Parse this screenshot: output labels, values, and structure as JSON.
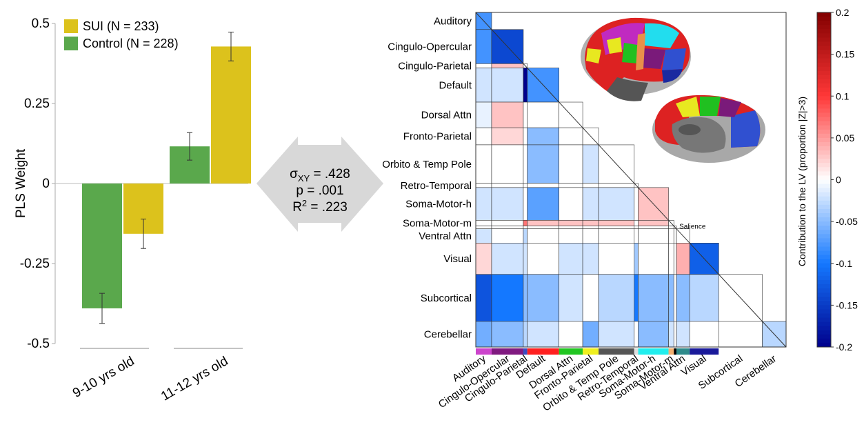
{
  "chart_data": [
    {
      "type": "bar",
      "ylabel": "PLS Weight",
      "ylim": [
        -0.5,
        0.5
      ],
      "yticks": [
        "0.5",
        "0.25",
        "0",
        "-0.25",
        "-0.5"
      ],
      "categories": [
        "9-10 yrs old",
        "11-12 yrs old"
      ],
      "legend": "top-left",
      "series": [
        {
          "name": "Control (N = 228)",
          "color": "#5aa84c",
          "values": [
            -0.39,
            0.116
          ],
          "error": [
            0.047,
            0.043
          ]
        },
        {
          "name": "SUI (N = 233)",
          "color": "#dcc21c",
          "values": [
            -0.157,
            0.428
          ],
          "error": [
            0.046,
            0.045
          ]
        }
      ],
      "stats": {
        "sigma": "σ",
        "sigma_sub": "XY",
        "sigma_value": " = .428",
        "p": "p = .001",
        "r2": "R",
        "r2_sup": "2",
        "r2_value": " = .223"
      }
    },
    {
      "type": "heatmap",
      "networks": [
        "Auditory",
        "Cingulo-Opercular",
        "Cingulo-Parietal",
        "Default",
        "Dorsal Attn",
        "Fronto-Parietal",
        "Orbito & Temp Pole",
        "Retro-Temporal",
        "Soma-Motor-h",
        "Soma-Motor-m",
        "Salience",
        "Ventral Attn",
        "Visual",
        "Subcortical",
        "Cerebellar"
      ],
      "network_colors": [
        "#cc44cc",
        "#801a80",
        "#3b4cc0",
        "#ff2020",
        "#22c622",
        "#f0f020",
        "#555555",
        "#dddddd",
        "#22eeee",
        "#f4b070",
        "#000000",
        "#2e8b8b",
        "#1a1a9a",
        "#ffffff",
        "#ffffff"
      ],
      "values": [
        [
          -0.08
        ],
        [
          -0.08,
          -0.14
        ],
        [
          0.0,
          0.03,
          0.0
        ],
        [
          -0.02,
          -0.02,
          -0.2,
          -0.08
        ],
        [
          -0.01,
          0.03,
          0.0,
          0.0,
          0.0
        ],
        [
          0.0,
          0.02,
          0.0,
          -0.05,
          0.0,
          0.0
        ],
        [
          0.0,
          0.0,
          0.0,
          -0.05,
          0.0,
          -0.02,
          0.0
        ],
        [
          0.0,
          0.0,
          0.0,
          0.0,
          0.0,
          0.0,
          0.0,
          0.0
        ],
        [
          -0.02,
          -0.02,
          0.0,
          -0.07,
          0.0,
          -0.02,
          -0.02,
          0.0,
          0.03
        ],
        [
          0.0,
          0.0,
          0.07,
          0.03,
          0.03,
          0.03,
          0.03,
          0.0,
          0.03,
          0.0
        ],
        [
          0.0,
          0.0,
          0.0,
          0.0,
          0.0,
          0.0,
          0.0,
          0.0,
          0.0,
          0.0,
          0.0
        ],
        [
          -0.02,
          0.0,
          -0.03,
          0.0,
          0.0,
          0.0,
          0.0,
          0.0,
          0.0,
          0.0,
          0.0,
          0.0
        ],
        [
          0.02,
          -0.02,
          -0.02,
          0.0,
          -0.02,
          -0.02,
          0.0,
          -0.04,
          0.0,
          0.0,
          0.0,
          0.04,
          -0.12
        ],
        [
          -0.13,
          -0.1,
          -0.05,
          -0.05,
          -0.02,
          0.0,
          -0.03,
          -0.1,
          -0.05,
          -0.05,
          0.0,
          -0.05,
          -0.03,
          0.0
        ],
        [
          -0.06,
          -0.05,
          -0.03,
          -0.02,
          0.0,
          -0.06,
          -0.02,
          0.0,
          -0.05,
          -0.02,
          0.0,
          -0.02,
          0.0,
          0.0,
          -0.03
        ]
      ],
      "colorbar": {
        "label": "Contribution to the LV (proportion |Z|>3)",
        "range": [
          -0.2,
          0.2
        ],
        "ticks": [
          "0.2",
          "0.15",
          "0.1",
          "0.05",
          "0",
          "-0.05",
          "-0.1",
          "-0.15",
          "-0.2"
        ]
      }
    }
  ]
}
